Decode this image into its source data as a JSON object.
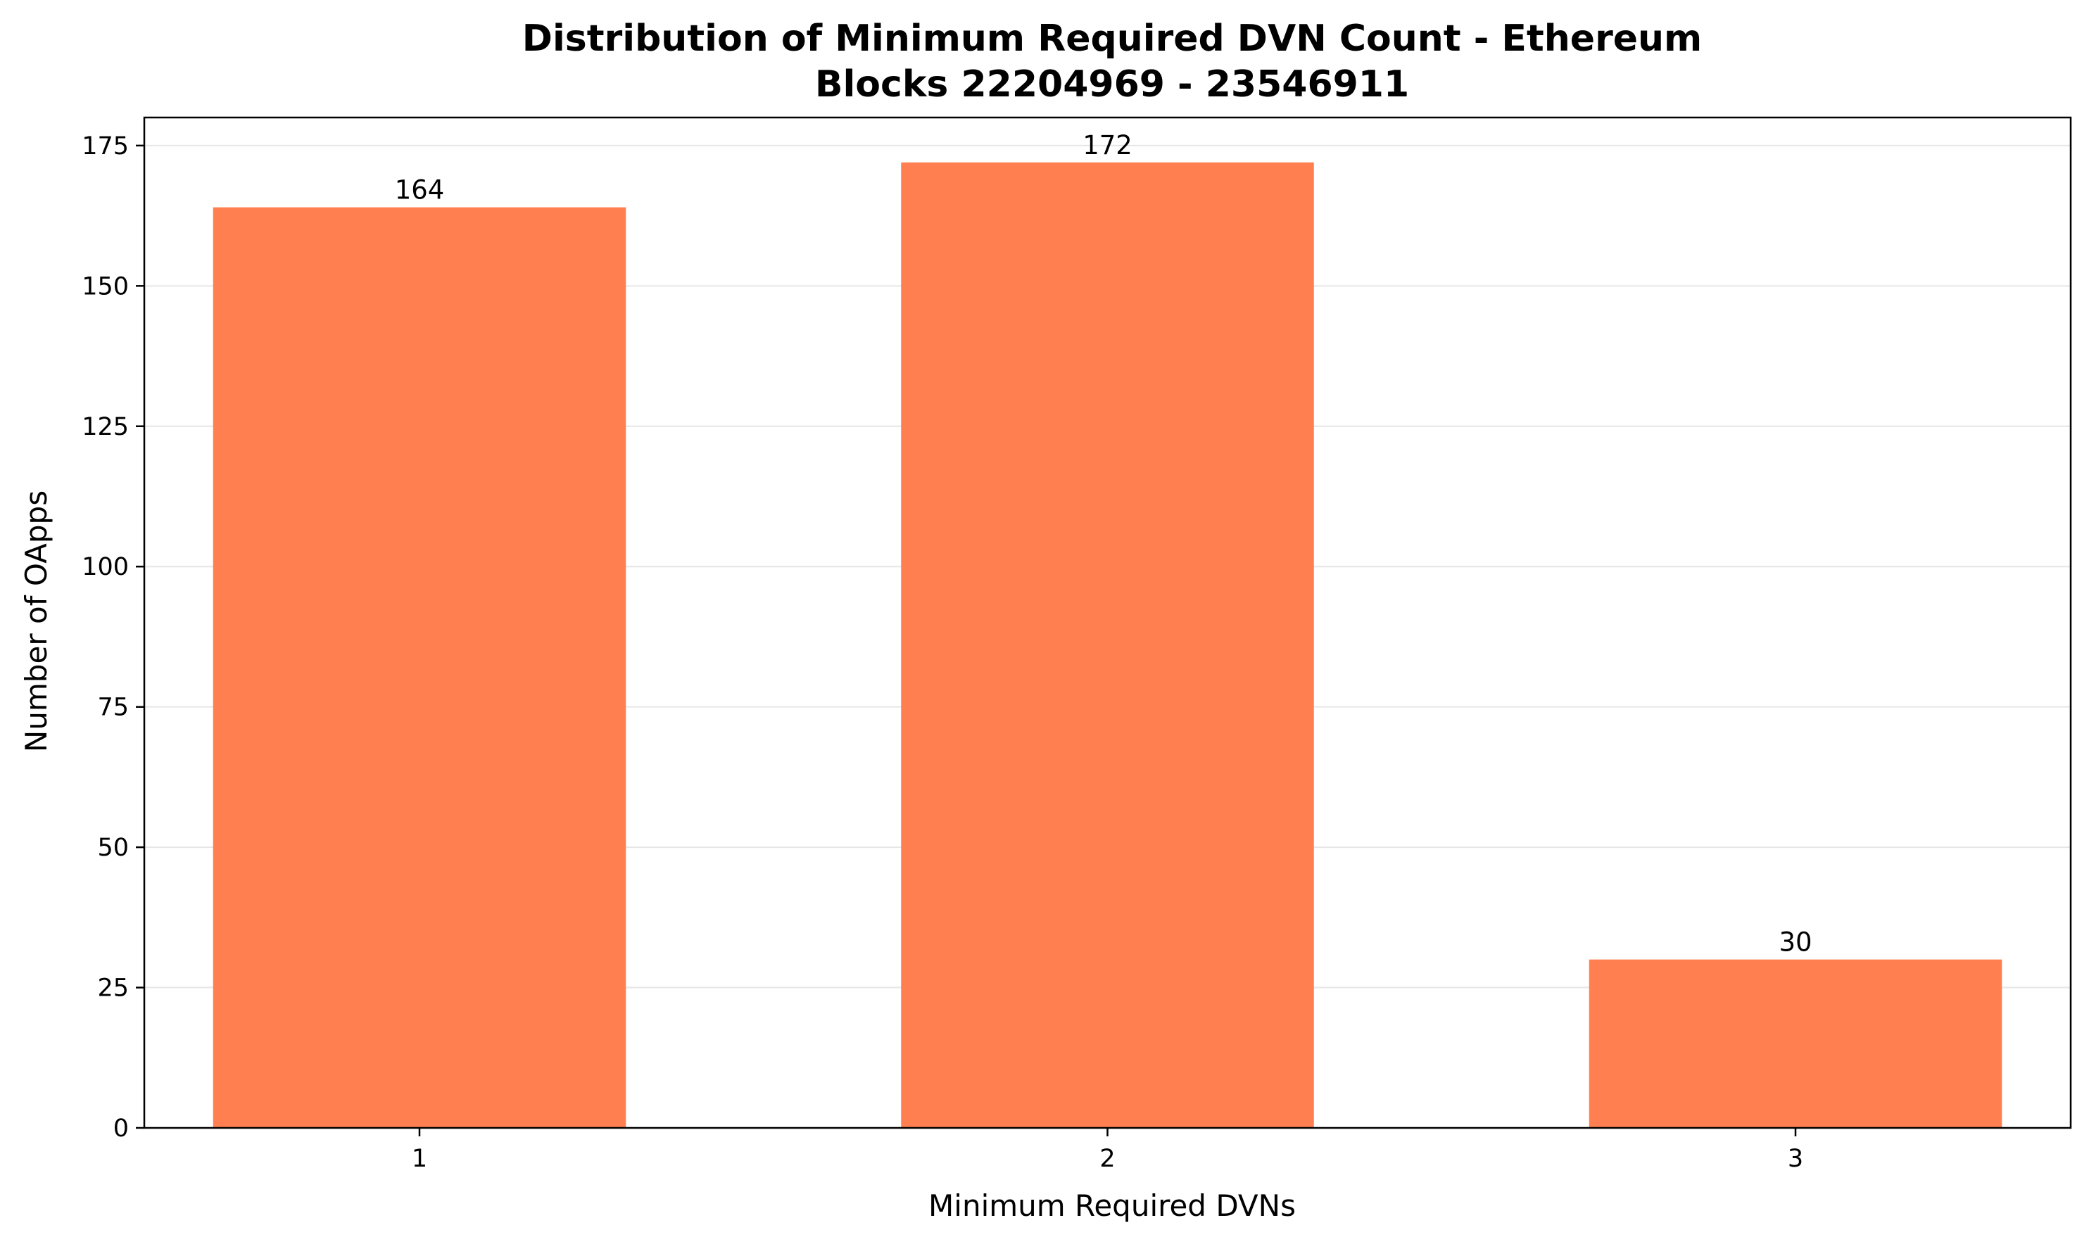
{
  "chart_data": {
    "type": "bar",
    "title": "Distribution of Minimum Required DVN Count - Ethereum",
    "subtitle": "Blocks 22204969 - 23546911",
    "xlabel": "Minimum Required DVNs",
    "ylabel": "Number of OApps",
    "categories": [
      "1",
      "2",
      "3"
    ],
    "values": [
      164,
      172,
      30
    ],
    "data_labels": [
      "164",
      "172",
      "30"
    ],
    "ylim": [
      0,
      180
    ],
    "yticks": [
      0,
      25,
      50,
      75,
      100,
      125,
      150,
      175
    ],
    "grid": "y",
    "bar_color": "#ff7f50",
    "grid_color": "#e6e6e6",
    "axis_color": "#000000"
  }
}
